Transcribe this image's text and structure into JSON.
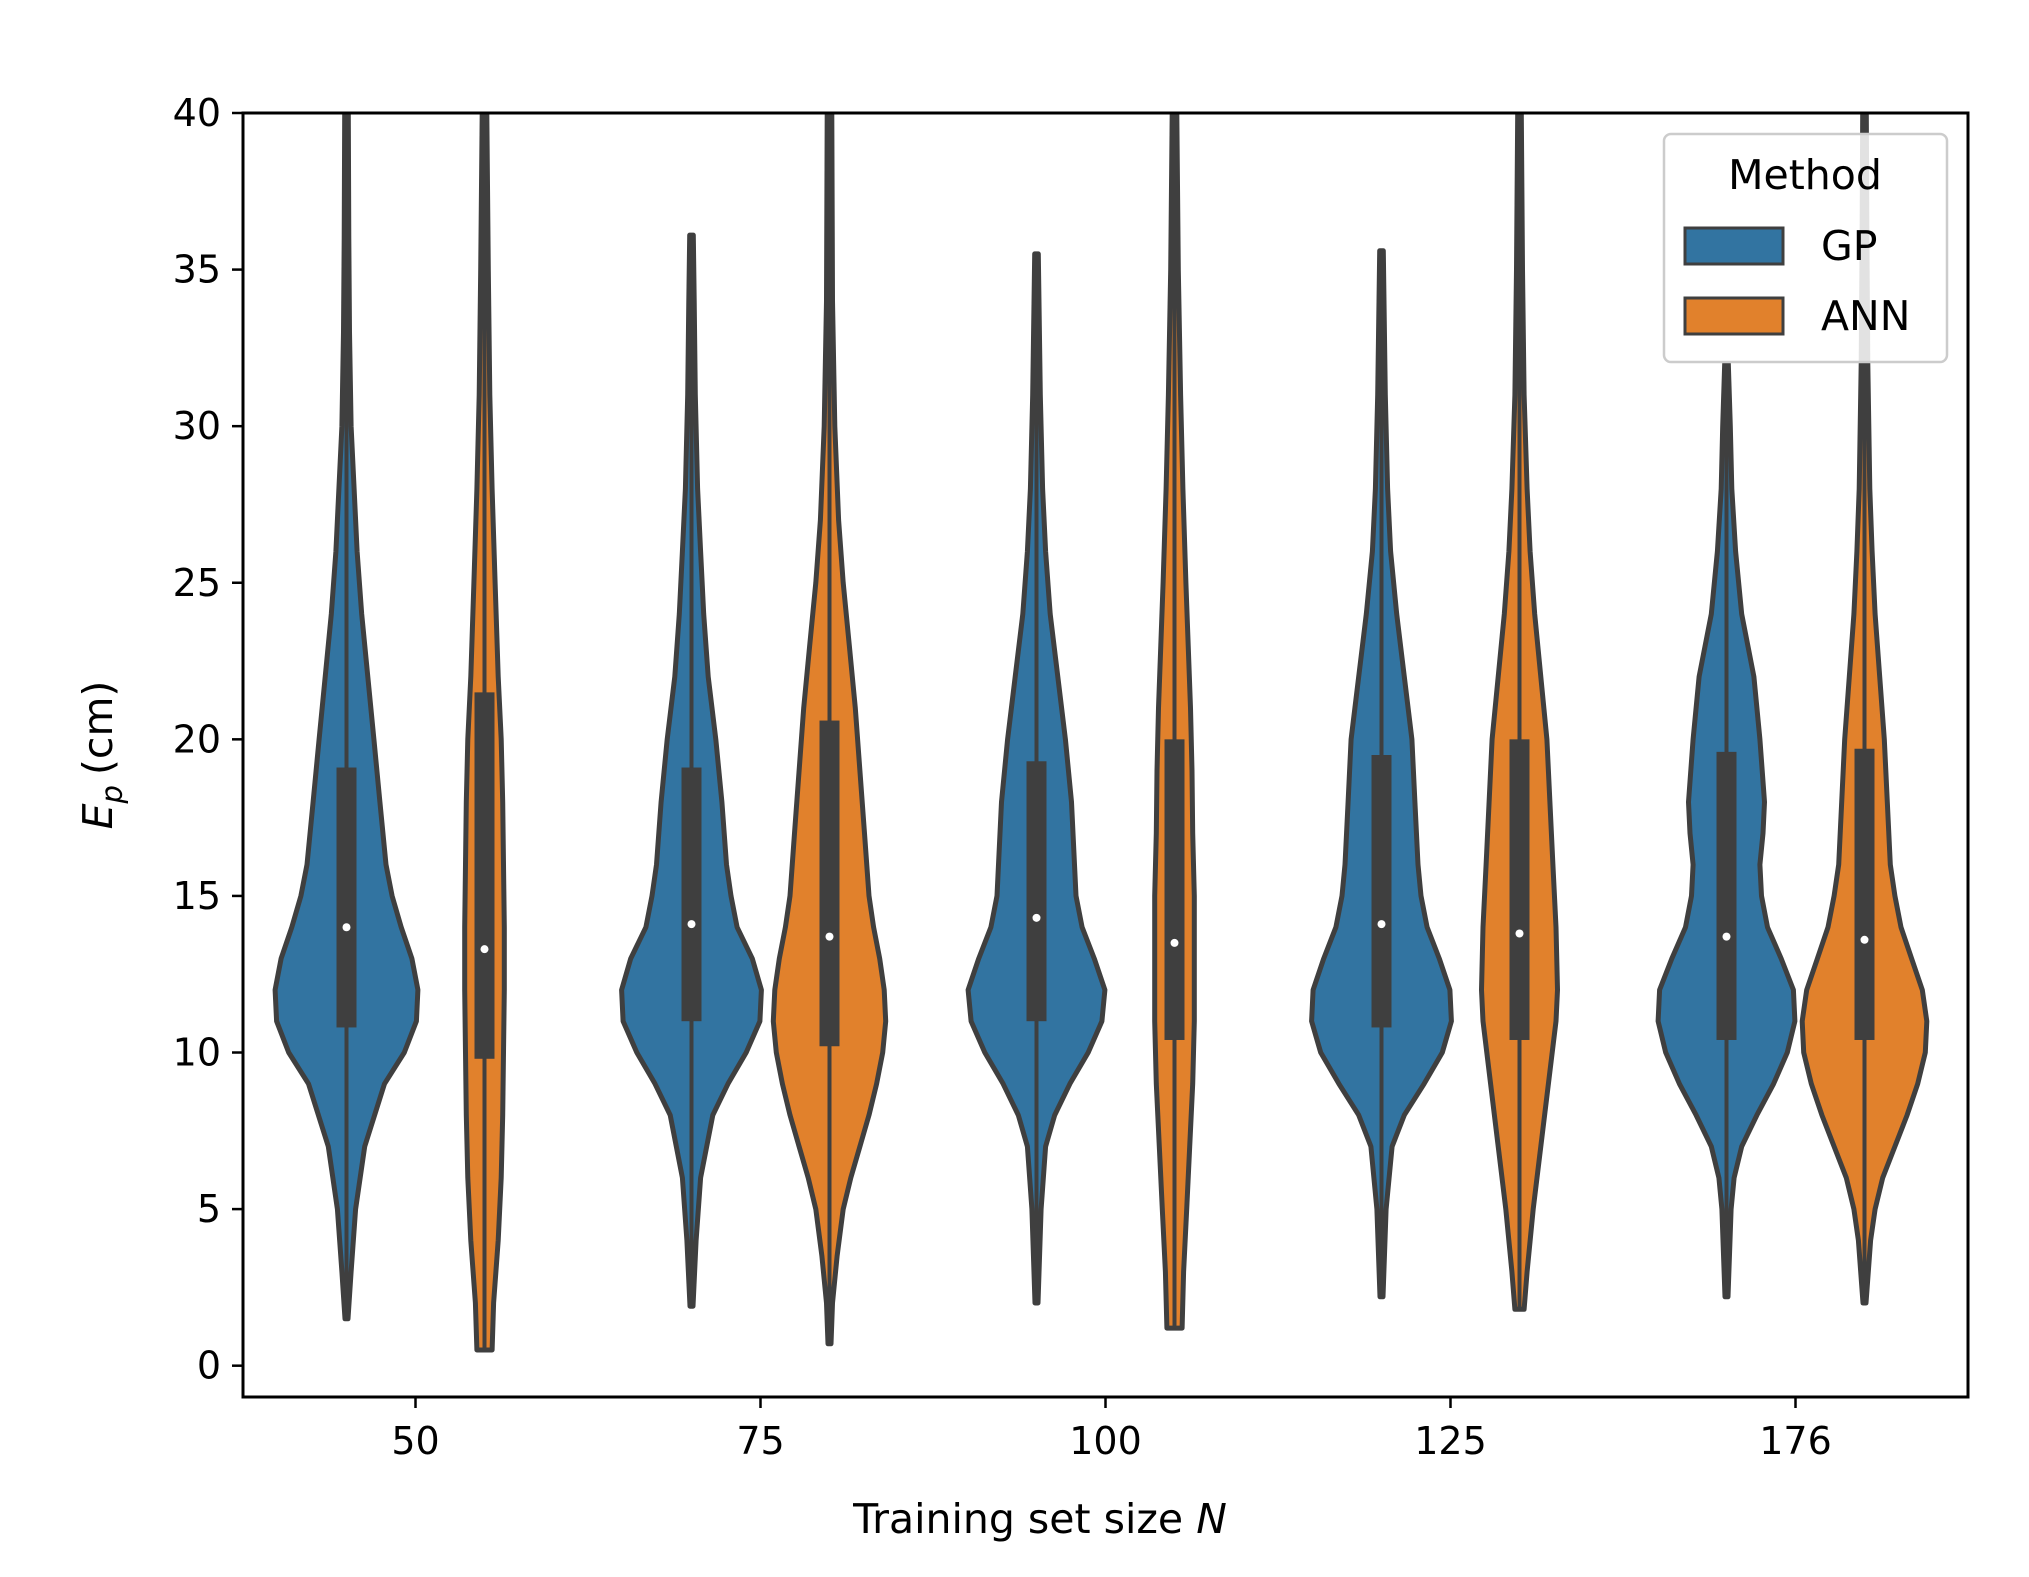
{
  "chart_data": {
    "type": "violin",
    "title": "",
    "xlabel": "Training set size",
    "xlabel_var": "N",
    "ylabel_var": "E",
    "ylabel_sub": "p",
    "ylabel_unit": "(cm)",
    "ylim": [
      -1,
      40
    ],
    "yticks": [
      0,
      5,
      10,
      15,
      20,
      25,
      30,
      35,
      40
    ],
    "categories": [
      "50",
      "75",
      "100",
      "125",
      "176"
    ],
    "legend": {
      "title": "Method",
      "position": "top-right"
    },
    "series": [
      {
        "name": "GP",
        "color": "#3274a1",
        "groups": [
          {
            "min": 1.5,
            "max": 40,
            "q1": 10.8,
            "median": 14.0,
            "q3": 19.1,
            "width": [
              [
                1.5,
                0.01
              ],
              [
                3,
                0.03
              ],
              [
                5,
                0.06
              ],
              [
                7,
                0.12
              ],
              [
                9,
                0.25
              ],
              [
                10,
                0.38
              ],
              [
                11,
                0.46
              ],
              [
                12,
                0.47
              ],
              [
                13,
                0.43
              ],
              [
                14,
                0.36
              ],
              [
                15,
                0.3
              ],
              [
                16,
                0.26
              ],
              [
                18,
                0.22
              ],
              [
                20,
                0.18
              ],
              [
                22,
                0.14
              ],
              [
                24,
                0.1
              ],
              [
                26,
                0.07
              ],
              [
                28,
                0.05
              ],
              [
                30,
                0.03
              ],
              [
                33,
                0.02
              ],
              [
                36,
                0.015
              ],
              [
                40,
                0.012
              ]
            ]
          },
          {
            "min": 1.9,
            "max": 36.1,
            "q1": 11.0,
            "median": 14.1,
            "q3": 19.1,
            "width": [
              [
                1.9,
                0.01
              ],
              [
                4,
                0.03
              ],
              [
                6,
                0.06
              ],
              [
                8,
                0.14
              ],
              [
                9,
                0.24
              ],
              [
                10,
                0.36
              ],
              [
                11,
                0.45
              ],
              [
                12,
                0.46
              ],
              [
                13,
                0.4
              ],
              [
                14,
                0.3
              ],
              [
                15,
                0.26
              ],
              [
                16,
                0.23
              ],
              [
                18,
                0.2
              ],
              [
                20,
                0.16
              ],
              [
                22,
                0.11
              ],
              [
                24,
                0.08
              ],
              [
                26,
                0.06
              ],
              [
                28,
                0.04
              ],
              [
                31,
                0.025
              ],
              [
                34,
                0.018
              ],
              [
                36.1,
                0.012
              ]
            ]
          },
          {
            "min": 2.0,
            "max": 35.5,
            "q1": 11.0,
            "median": 14.3,
            "q3": 19.3,
            "width": [
              [
                2,
                0.01
              ],
              [
                5,
                0.03
              ],
              [
                7,
                0.06
              ],
              [
                8,
                0.12
              ],
              [
                9,
                0.22
              ],
              [
                10,
                0.34
              ],
              [
                11,
                0.43
              ],
              [
                12,
                0.45
              ],
              [
                13,
                0.38
              ],
              [
                14,
                0.3
              ],
              [
                15,
                0.26
              ],
              [
                16,
                0.25
              ],
              [
                18,
                0.23
              ],
              [
                20,
                0.19
              ],
              [
                22,
                0.14
              ],
              [
                24,
                0.09
              ],
              [
                26,
                0.06
              ],
              [
                28,
                0.04
              ],
              [
                31,
                0.025
              ],
              [
                35.5,
                0.012
              ]
            ]
          },
          {
            "min": 2.2,
            "max": 35.6,
            "q1": 10.8,
            "median": 14.1,
            "q3": 19.5,
            "width": [
              [
                2.2,
                0.01
              ],
              [
                5,
                0.03
              ],
              [
                7,
                0.07
              ],
              [
                8,
                0.15
              ],
              [
                9,
                0.28
              ],
              [
                10,
                0.4
              ],
              [
                11,
                0.46
              ],
              [
                12,
                0.45
              ],
              [
                13,
                0.38
              ],
              [
                14,
                0.3
              ],
              [
                15,
                0.26
              ],
              [
                16,
                0.24
              ],
              [
                18,
                0.22
              ],
              [
                20,
                0.2
              ],
              [
                22,
                0.15
              ],
              [
                24,
                0.1
              ],
              [
                26,
                0.06
              ],
              [
                28,
                0.04
              ],
              [
                31,
                0.025
              ],
              [
                35.6,
                0.012
              ]
            ]
          },
          {
            "min": 2.2,
            "max": 32.0,
            "q1": 10.4,
            "median": 13.7,
            "q3": 19.6,
            "width": [
              [
                2.2,
                0.01
              ],
              [
                5,
                0.03
              ],
              [
                6,
                0.05
              ],
              [
                7,
                0.1
              ],
              [
                8,
                0.2
              ],
              [
                9,
                0.31
              ],
              [
                10,
                0.4
              ],
              [
                11,
                0.45
              ],
              [
                12,
                0.44
              ],
              [
                13,
                0.36
              ],
              [
                14,
                0.27
              ],
              [
                15,
                0.23
              ],
              [
                16,
                0.22
              ],
              [
                17,
                0.24
              ],
              [
                18,
                0.25
              ],
              [
                20,
                0.22
              ],
              [
                22,
                0.18
              ],
              [
                24,
                0.1
              ],
              [
                26,
                0.06
              ],
              [
                28,
                0.035
              ],
              [
                30,
                0.025
              ],
              [
                32,
                0.012
              ]
            ]
          }
        ]
      },
      {
        "name": "ANN",
        "color": "#e1812c",
        "groups": [
          {
            "min": 0.5,
            "max": 40,
            "q1": 9.8,
            "median": 13.3,
            "q3": 21.5,
            "width": [
              [
                0.5,
                0.05
              ],
              [
                2,
                0.06
              ],
              [
                4,
                0.09
              ],
              [
                6,
                0.11
              ],
              [
                8,
                0.12
              ],
              [
                10,
                0.125
              ],
              [
                12,
                0.13
              ],
              [
                14,
                0.13
              ],
              [
                16,
                0.125
              ],
              [
                18,
                0.12
              ],
              [
                20,
                0.11
              ],
              [
                22,
                0.09
              ],
              [
                25,
                0.07
              ],
              [
                28,
                0.05
              ],
              [
                31,
                0.035
              ],
              [
                35,
                0.025
              ],
              [
                40,
                0.015
              ]
            ]
          },
          {
            "min": 0.7,
            "max": 40,
            "q1": 10.2,
            "median": 13.7,
            "q3": 20.6,
            "width": [
              [
                0.7,
                0.01
              ],
              [
                2,
                0.02
              ],
              [
                3.5,
                0.05
              ],
              [
                5,
                0.09
              ],
              [
                6,
                0.14
              ],
              [
                7,
                0.2
              ],
              [
                8,
                0.26
              ],
              [
                9,
                0.31
              ],
              [
                10,
                0.35
              ],
              [
                11,
                0.37
              ],
              [
                12,
                0.36
              ],
              [
                13,
                0.33
              ],
              [
                14,
                0.29
              ],
              [
                15,
                0.26
              ],
              [
                17,
                0.23
              ],
              [
                19,
                0.2
              ],
              [
                21,
                0.17
              ],
              [
                23,
                0.13
              ],
              [
                25,
                0.09
              ],
              [
                27,
                0.06
              ],
              [
                30,
                0.035
              ],
              [
                34,
                0.02
              ],
              [
                40,
                0.015
              ]
            ]
          },
          {
            "min": 1.2,
            "max": 40,
            "q1": 10.4,
            "median": 13.5,
            "q3": 20.0,
            "width": [
              [
                1.2,
                0.05
              ],
              [
                3,
                0.06
              ],
              [
                5,
                0.08
              ],
              [
                7,
                0.1
              ],
              [
                9,
                0.12
              ],
              [
                11,
                0.13
              ],
              [
                13,
                0.13
              ],
              [
                15,
                0.13
              ],
              [
                17,
                0.12
              ],
              [
                19,
                0.115
              ],
              [
                21,
                0.105
              ],
              [
                23,
                0.09
              ],
              [
                25,
                0.075
              ],
              [
                28,
                0.055
              ],
              [
                31,
                0.04
              ],
              [
                35,
                0.025
              ],
              [
                40,
                0.015
              ]
            ]
          },
          {
            "min": 1.8,
            "max": 40,
            "q1": 10.4,
            "median": 13.8,
            "q3": 20.0,
            "width": [
              [
                1.8,
                0.03
              ],
              [
                3,
                0.05
              ],
              [
                5,
                0.09
              ],
              [
                7,
                0.14
              ],
              [
                9,
                0.19
              ],
              [
                11,
                0.24
              ],
              [
                12,
                0.25
              ],
              [
                14,
                0.24
              ],
              [
                16,
                0.22
              ],
              [
                18,
                0.2
              ],
              [
                20,
                0.18
              ],
              [
                22,
                0.14
              ],
              [
                24,
                0.1
              ],
              [
                26,
                0.07
              ],
              [
                28,
                0.05
              ],
              [
                31,
                0.03
              ],
              [
                35,
                0.02
              ],
              [
                40,
                0.012
              ]
            ]
          },
          {
            "min": 2.0,
            "max": 40,
            "q1": 10.4,
            "median": 13.6,
            "q3": 19.7,
            "width": [
              [
                2,
                0.01
              ],
              [
                4,
                0.04
              ],
              [
                5,
                0.07
              ],
              [
                6,
                0.12
              ],
              [
                7,
                0.2
              ],
              [
                8,
                0.28
              ],
              [
                9,
                0.35
              ],
              [
                10,
                0.4
              ],
              [
                11,
                0.41
              ],
              [
                12,
                0.38
              ],
              [
                13,
                0.31
              ],
              [
                14,
                0.24
              ],
              [
                15,
                0.2
              ],
              [
                16,
                0.17
              ],
              [
                18,
                0.15
              ],
              [
                20,
                0.13
              ],
              [
                22,
                0.1
              ],
              [
                24,
                0.07
              ],
              [
                26,
                0.05
              ],
              [
                28,
                0.035
              ],
              [
                32,
                0.022
              ],
              [
                36,
                0.016
              ],
              [
                40,
                0.012
              ]
            ]
          }
        ]
      }
    ]
  }
}
